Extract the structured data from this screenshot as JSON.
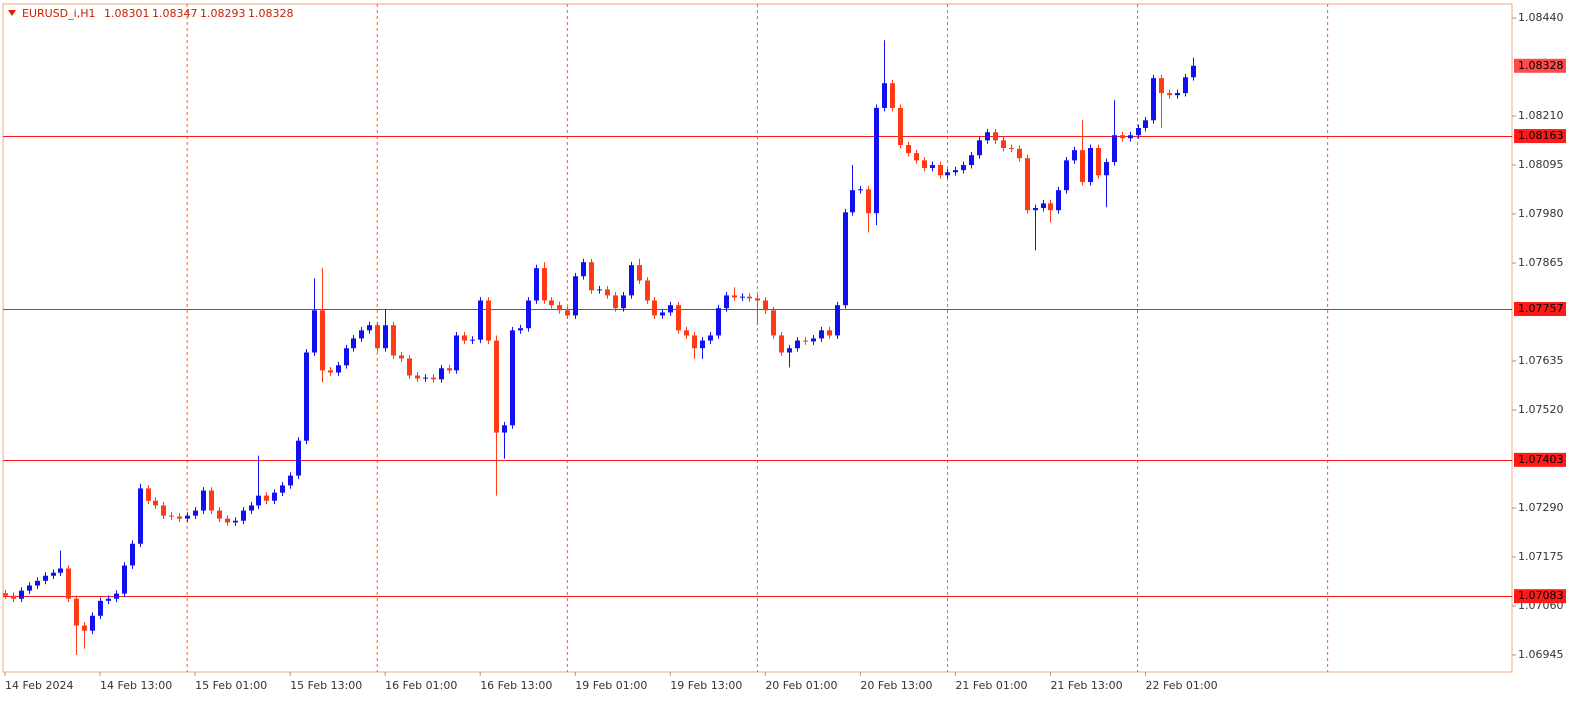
{
  "chart_data": {
    "type": "candlestick",
    "series": [
      {
        "name": "EURUSD_i,H1",
        "open": [
          1.0709,
          1.07084,
          1.07077,
          1.07096,
          1.07108,
          1.07119,
          1.07131,
          1.07138,
          1.07148,
          1.07077,
          1.07014,
          1.07002,
          1.07037,
          1.07072,
          1.07077,
          1.07089,
          1.07155,
          1.07206,
          1.07336,
          1.07307,
          1.07296,
          1.07272,
          1.0727,
          1.07265,
          1.07272,
          1.07284,
          1.07331,
          1.07284,
          1.07265,
          1.07256,
          1.0726,
          1.07284,
          1.07296,
          1.07319,
          1.07307,
          1.07326,
          1.07343,
          1.07366,
          1.07448,
          1.07655,
          1.07754,
          1.07613,
          1.07608,
          1.07625,
          1.07665,
          1.07688,
          1.07707,
          1.07719,
          1.07665,
          1.07719,
          1.07648,
          1.07641,
          1.07601,
          1.07594,
          1.07596,
          1.07592,
          1.07618,
          1.07613,
          1.07695,
          1.07683,
          1.07685,
          1.07777,
          1.07683,
          1.07467,
          1.07484,
          1.07707,
          1.07712,
          1.07777,
          1.07853,
          1.07777,
          1.07766,
          1.07754,
          1.07742,
          1.07834,
          1.07867,
          1.07801,
          1.07803,
          1.07789,
          1.07759,
          1.07789,
          1.0786,
          1.07824,
          1.07777,
          1.07742,
          1.07749,
          1.07766,
          1.07707,
          1.07695,
          1.07665,
          1.07683,
          1.07695,
          1.07759,
          1.07789,
          1.07784,
          1.07786,
          1.07782,
          1.07777,
          1.07754,
          1.07695,
          1.07655,
          1.07665,
          1.07683,
          1.07681,
          1.07688,
          1.07707,
          1.07695,
          1.07766,
          1.07984,
          1.08036,
          1.08038,
          1.07982,
          1.08229,
          1.08287,
          1.08229,
          1.08142,
          1.08123,
          1.08106,
          1.08088,
          1.08095,
          1.08071,
          1.08078,
          1.08083,
          1.08095,
          1.08118,
          1.08153,
          1.08172,
          1.08153,
          1.08135,
          1.08133,
          1.08111,
          1.07989,
          1.07994,
          1.08005,
          1.07989,
          1.08036,
          1.08106,
          1.0813,
          1.08055,
          1.08135,
          1.08071,
          1.08102,
          1.08165,
          1.08158,
          1.08165,
          1.08182,
          1.082,
          1.08299,
          1.08264,
          1.08259,
          1.08264,
          1.08301
        ],
        "high": [
          1.07098,
          1.07092,
          1.07104,
          1.07116,
          1.07127,
          1.07139,
          1.07146,
          1.0719,
          1.07156,
          1.07085,
          1.07022,
          1.07045,
          1.0708,
          1.07085,
          1.07097,
          1.07163,
          1.07214,
          1.07347,
          1.07344,
          1.07315,
          1.07304,
          1.0728,
          1.07278,
          1.0728,
          1.07292,
          1.07339,
          1.07339,
          1.07292,
          1.07273,
          1.07268,
          1.07292,
          1.07304,
          1.07413,
          1.07327,
          1.07334,
          1.07351,
          1.07374,
          1.07456,
          1.07663,
          1.07829,
          1.07853,
          1.07621,
          1.07633,
          1.07673,
          1.07696,
          1.07715,
          1.07727,
          1.07727,
          1.07757,
          1.07727,
          1.07656,
          1.07649,
          1.07609,
          1.07604,
          1.07604,
          1.07626,
          1.07626,
          1.07703,
          1.07703,
          1.07693,
          1.07785,
          1.07785,
          1.07695,
          1.07492,
          1.07715,
          1.0772,
          1.07785,
          1.07861,
          1.07867,
          1.07785,
          1.07774,
          1.07762,
          1.07842,
          1.07875,
          1.07875,
          1.07811,
          1.07811,
          1.07797,
          1.07797,
          1.07868,
          1.07875,
          1.07832,
          1.07785,
          1.07757,
          1.07774,
          1.07774,
          1.07715,
          1.07703,
          1.07691,
          1.07703,
          1.07767,
          1.07797,
          1.07808,
          1.07794,
          1.07794,
          1.0779,
          1.07785,
          1.07762,
          1.07703,
          1.07673,
          1.07691,
          1.07691,
          1.07696,
          1.07715,
          1.07715,
          1.07774,
          1.07992,
          1.08095,
          1.08046,
          1.08046,
          1.08237,
          1.08388,
          1.08295,
          1.08237,
          1.0815,
          1.08131,
          1.08114,
          1.08103,
          1.08103,
          1.08086,
          1.08091,
          1.08103,
          1.08126,
          1.08161,
          1.0818,
          1.0818,
          1.08161,
          1.08143,
          1.08141,
          1.08119,
          1.08002,
          1.08013,
          1.08013,
          1.08044,
          1.08114,
          1.08138,
          1.082,
          1.08143,
          1.08143,
          1.0811,
          1.08247,
          1.08173,
          1.08173,
          1.0819,
          1.08208,
          1.08307,
          1.08307,
          1.08272,
          1.08272,
          1.08309,
          1.08347
        ],
        "low": [
          1.07076,
          1.07069,
          1.07069,
          1.07088,
          1.071,
          1.07111,
          1.07123,
          1.0713,
          1.07069,
          1.06945,
          1.0696,
          1.06994,
          1.07029,
          1.07064,
          1.07069,
          1.07081,
          1.07147,
          1.07198,
          1.07299,
          1.07288,
          1.07264,
          1.07262,
          1.07257,
          1.07257,
          1.07264,
          1.07276,
          1.07276,
          1.07257,
          1.07248,
          1.07248,
          1.07252,
          1.07276,
          1.07288,
          1.07299,
          1.07299,
          1.07318,
          1.07335,
          1.07358,
          1.0744,
          1.07647,
          1.07585,
          1.076,
          1.076,
          1.07617,
          1.07657,
          1.0768,
          1.07699,
          1.07657,
          1.07657,
          1.0764,
          1.07633,
          1.07593,
          1.07586,
          1.07586,
          1.07584,
          1.07584,
          1.07605,
          1.07605,
          1.07675,
          1.07675,
          1.07677,
          1.07675,
          1.07319,
          1.07406,
          1.07476,
          1.07699,
          1.07704,
          1.07769,
          1.07769,
          1.07758,
          1.07746,
          1.07734,
          1.07734,
          1.07826,
          1.07793,
          1.07793,
          1.07781,
          1.07751,
          1.07751,
          1.07781,
          1.07816,
          1.07769,
          1.07734,
          1.07734,
          1.07741,
          1.07699,
          1.07687,
          1.0764,
          1.0764,
          1.07675,
          1.07687,
          1.07751,
          1.07776,
          1.07776,
          1.07774,
          1.0772,
          1.07746,
          1.07687,
          1.07647,
          1.0762,
          1.07657,
          1.07673,
          1.07673,
          1.0768,
          1.07687,
          1.07687,
          1.07758,
          1.07976,
          1.08028,
          1.07937,
          1.07954,
          1.08221,
          1.08221,
          1.08134,
          1.08115,
          1.08098,
          1.0808,
          1.0808,
          1.08063,
          1.08063,
          1.0807,
          1.08075,
          1.08087,
          1.0811,
          1.08145,
          1.08145,
          1.08127,
          1.08125,
          1.08103,
          1.07981,
          1.07895,
          1.07986,
          1.0796,
          1.07981,
          1.08028,
          1.08098,
          1.08047,
          1.08047,
          1.08063,
          1.07996,
          1.08094,
          1.0815,
          1.0815,
          1.08157,
          1.08174,
          1.08192,
          1.08182,
          1.08251,
          1.08251,
          1.08256,
          1.08293
        ],
        "close": [
          1.07084,
          1.07077,
          1.07096,
          1.07108,
          1.07119,
          1.07131,
          1.07138,
          1.07148,
          1.07077,
          1.07014,
          1.07002,
          1.07037,
          1.07072,
          1.07077,
          1.07089,
          1.07155,
          1.07206,
          1.07336,
          1.07307,
          1.07296,
          1.07272,
          1.0727,
          1.07265,
          1.07272,
          1.07284,
          1.07331,
          1.07284,
          1.07265,
          1.07256,
          1.0726,
          1.07284,
          1.07296,
          1.07319,
          1.07307,
          1.07326,
          1.07343,
          1.07366,
          1.07448,
          1.07655,
          1.07754,
          1.07613,
          1.07608,
          1.07625,
          1.07665,
          1.07688,
          1.07707,
          1.07719,
          1.07665,
          1.07719,
          1.07648,
          1.07641,
          1.07601,
          1.07594,
          1.07596,
          1.07592,
          1.07618,
          1.07613,
          1.07695,
          1.07683,
          1.07685,
          1.07777,
          1.07683,
          1.07467,
          1.07484,
          1.07707,
          1.07712,
          1.07777,
          1.07853,
          1.07777,
          1.07766,
          1.07754,
          1.07742,
          1.07834,
          1.07867,
          1.07801,
          1.07803,
          1.07789,
          1.07759,
          1.07789,
          1.0786,
          1.07824,
          1.07777,
          1.07742,
          1.07749,
          1.07766,
          1.07707,
          1.07695,
          1.07665,
          1.07683,
          1.07695,
          1.07759,
          1.07789,
          1.07784,
          1.07786,
          1.07782,
          1.07777,
          1.07754,
          1.07695,
          1.07655,
          1.07665,
          1.07683,
          1.07681,
          1.07688,
          1.07707,
          1.07695,
          1.07766,
          1.07984,
          1.08036,
          1.08038,
          1.07982,
          1.08229,
          1.08287,
          1.08229,
          1.08142,
          1.08123,
          1.08106,
          1.08088,
          1.08095,
          1.08071,
          1.08078,
          1.08083,
          1.08095,
          1.08118,
          1.08153,
          1.08172,
          1.08153,
          1.08135,
          1.08133,
          1.08111,
          1.07989,
          1.07994,
          1.08005,
          1.07989,
          1.08036,
          1.08106,
          1.0813,
          1.08055,
          1.08135,
          1.08071,
          1.08102,
          1.08165,
          1.08158,
          1.08165,
          1.08182,
          1.082,
          1.08299,
          1.08264,
          1.08259,
          1.08264,
          1.08301,
          1.08328
        ]
      }
    ],
    "x": [
      "14 Feb 2024",
      null,
      null,
      null,
      null,
      null,
      null,
      null,
      null,
      null,
      null,
      null,
      "14 Feb 13:00",
      null,
      null,
      null,
      null,
      null,
      null,
      null,
      null,
      null,
      null,
      null,
      "15 Feb 01:00",
      null,
      null,
      null,
      null,
      null,
      null,
      null,
      null,
      null,
      null,
      null,
      "15 Feb 13:00",
      null,
      null,
      null,
      null,
      null,
      null,
      null,
      null,
      null,
      null,
      null,
      "16 Feb 01:00",
      null,
      null,
      null,
      null,
      null,
      null,
      null,
      null,
      null,
      null,
      null,
      "16 Feb 13:00",
      null,
      null,
      null,
      null,
      null,
      null,
      null,
      null,
      null,
      null,
      null,
      "19 Feb 01:00",
      null,
      null,
      null,
      null,
      null,
      null,
      null,
      null,
      null,
      null,
      null,
      "19 Feb 13:00",
      null,
      null,
      null,
      null,
      null,
      null,
      null,
      null,
      null,
      null,
      null,
      "20 Feb 01:00",
      null,
      null,
      null,
      null,
      null,
      null,
      null,
      null,
      null,
      null,
      null,
      "20 Feb 13:00",
      null,
      null,
      null,
      null,
      null,
      null,
      null,
      null,
      null,
      null,
      null,
      "21 Feb 01:00",
      null,
      null,
      null,
      null,
      null,
      null,
      null,
      null,
      null,
      null,
      null,
      "21 Feb 13:00",
      null,
      null,
      null,
      null,
      null,
      null,
      null,
      null,
      null,
      null,
      null,
      "22 Feb 01:00",
      null,
      null,
      null,
      null,
      null,
      null
    ],
    "ylim": [
      1.06905,
      1.08473
    ],
    "yticks": [
      {
        "value": 1.0844,
        "label": "1.08440"
      },
      {
        "value": 1.0821,
        "label": "1.08210"
      },
      1.08095,
      {
        "value": 1.0798,
        "label": "1.07980"
      },
      1.07865,
      1.07635,
      {
        "value": 1.0752,
        "label": "1.07520"
      },
      {
        "value": 1.0729,
        "label": "1.07290"
      },
      1.07175,
      {
        "value": 1.0706,
        "label": "1.07060"
      },
      1.06945
    ],
    "levels": [
      1.08163,
      1.07757,
      1.07403,
      1.07083
    ],
    "up_color": "#1010f0",
    "down_color": "#ff3a14",
    "level_color": "#ff1a1a",
    "grid": true
  }
}
